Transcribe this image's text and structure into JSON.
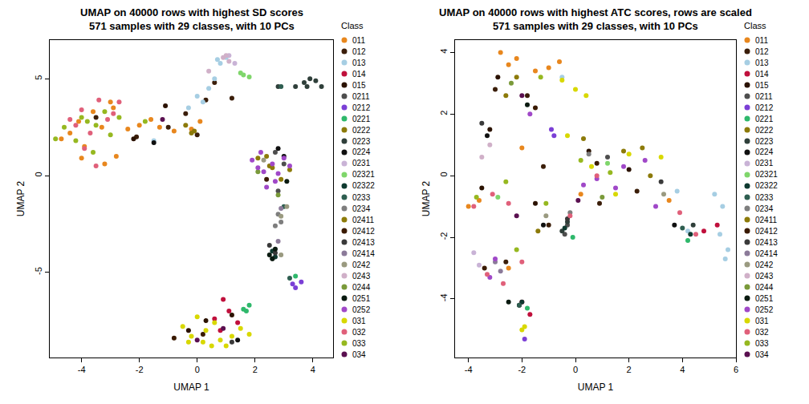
{
  "chart_data": [
    {
      "type": "scatter",
      "title": "UMAP on 40000 rows with highest SD scores",
      "subtitle": "571 samples with 29 classes, with 10 PCs",
      "x_label": "UMAP 1",
      "y_label": "UMAP 2",
      "legend_title": "Class",
      "xlim": [
        -5.1,
        4.7
      ],
      "ylim": [
        -9.4,
        7.0
      ],
      "xticks": [
        -4,
        -2,
        0,
        2,
        4
      ],
      "yticks": [
        -5,
        0,
        5
      ],
      "series": [
        {
          "name": "011",
          "color": "#E8871E",
          "x": [
            -4.7,
            -4.4,
            -4.1,
            -3.9,
            -3.6,
            -3.3,
            -3.0,
            -2.8,
            -2.4,
            -2.0,
            -1.6,
            -1.3,
            -0.8,
            -0.2,
            0.1,
            -3.2,
            -4.0,
            -2.9
          ],
          "y": [
            1.9,
            2.2,
            2.8,
            1.5,
            3.3,
            2.5,
            3.8,
            1.0,
            2.4,
            2.6,
            2.9,
            2.5,
            2.3,
            2.4,
            2.8,
            0.6,
            0.9,
            3.5
          ]
        },
        {
          "name": "012",
          "color": "#3B1E0A",
          "x": [
            -2.1,
            -1.0,
            -0.4,
            0.3,
            0.6,
            1.2,
            -3.5,
            0.0
          ],
          "y": [
            2.0,
            2.5,
            3.2,
            3.9,
            4.8,
            4.0,
            3.0,
            2.1
          ]
        },
        {
          "name": "013",
          "color": "#A6CEE3",
          "x": [
            -0.3,
            0.0,
            0.4,
            0.6,
            0.8,
            1.0,
            0.7,
            0.2,
            -1.5
          ],
          "y": [
            3.5,
            4.1,
            4.5,
            5.0,
            5.8,
            6.1,
            6.0,
            3.8,
            1.8
          ]
        },
        {
          "name": "014",
          "color": "#C0103C",
          "x": [
            0.9,
            0.6,
            1.1,
            1.4,
            0.8
          ],
          "y": [
            -6.4,
            -7.4,
            -7.0,
            -7.6,
            -8.0
          ]
        },
        {
          "name": "015",
          "color": "#2B1200",
          "x": [
            -2.2,
            -1.1,
            1.2,
            0.3,
            -0.3
          ],
          "y": [
            1.9,
            3.6,
            -7.2,
            -7.5,
            -8.0
          ]
        },
        {
          "name": "0211",
          "color": "#4E4E4E",
          "x": [
            3.0,
            2.7,
            2.8
          ],
          "y": [
            0.6,
            1.2,
            -0.8
          ]
        },
        {
          "name": "0212",
          "color": "#7B3FD6",
          "x": [
            3.3,
            3.4,
            3.6
          ],
          "y": [
            -5.6,
            -5.8,
            -5.5
          ]
        },
        {
          "name": "0221",
          "color": "#2EB86B",
          "x": [
            1.6,
            1.8,
            3.4,
            1.7
          ],
          "y": [
            -6.9,
            -6.7,
            -5.2,
            -7.0
          ]
        },
        {
          "name": "0222",
          "color": "#8C7A0A",
          "x": [
            -0.1,
            -0.4,
            2.5,
            -0.2
          ],
          "y": [
            2.3,
            2.6,
            0.5,
            2.2
          ]
        },
        {
          "name": "0223",
          "color": "#2F3F3A",
          "x": [
            3.4,
            3.7,
            3.9,
            4.1,
            4.3,
            3.8,
            2.8
          ],
          "y": [
            4.6,
            4.8,
            5.0,
            4.9,
            4.6,
            4.6,
            4.6
          ]
        },
        {
          "name": "0224",
          "color": "#101010",
          "x": [
            2.8,
            3.0,
            1.4,
            -1.5
          ],
          "y": [
            1.4,
            1.0,
            -8.5,
            1.7
          ]
        },
        {
          "name": "0231",
          "color": "#C9B3D6",
          "x": [
            1.1,
            1.3
          ],
          "y": [
            6.2,
            5.8
          ]
        },
        {
          "name": "02321",
          "color": "#7FD66B",
          "x": [
            1.5,
            1.8,
            1.6
          ],
          "y": [
            5.3,
            5.1,
            5.2
          ]
        },
        {
          "name": "02322",
          "color": "#0F3A30",
          "x": [
            2.6,
            2.7
          ],
          "y": [
            -3.9,
            -4.2
          ]
        },
        {
          "name": "0233",
          "color": "#2E5E50",
          "x": [
            2.9,
            3.0,
            3.2
          ],
          "y": [
            4.6,
            -1.6,
            -5.3
          ]
        },
        {
          "name": "0234",
          "color": "#7E7E7E",
          "x": [
            2.8,
            2.9,
            2.7
          ],
          "y": [
            -2.0,
            -2.4,
            -2.6
          ]
        },
        {
          "name": "02411",
          "color": "#8D7B0A",
          "x": [
            2.1,
            2.6,
            2.9,
            3.2,
            2.4
          ],
          "y": [
            0.9,
            0.4,
            -0.2,
            0.3,
            1.0
          ]
        },
        {
          "name": "02412",
          "color": "#3A1A00",
          "x": [
            2.4,
            0.2,
            -0.8
          ],
          "y": [
            -0.2,
            -8.2,
            -8.4
          ]
        },
        {
          "name": "02413",
          "color": "#3A3A3A",
          "x": [
            2.5,
            2.7,
            2.6,
            1.2
          ],
          "y": [
            -3.6,
            -4.0,
            -4.3,
            -8.6
          ]
        },
        {
          "name": "02414",
          "color": "#8B7A99",
          "x": [
            2.8,
            2.9
          ],
          "y": [
            -3.4,
            -1.7
          ]
        },
        {
          "name": "0242",
          "color": "#9A9A80",
          "x": [
            2.9,
            3.1,
            2.9,
            2.3
          ],
          "y": [
            -2.1,
            -1.6,
            -4.1,
            0.8
          ]
        },
        {
          "name": "0243",
          "color": "#D0B0C8",
          "x": [
            0.9,
            1.1,
            1.0,
            0.4
          ],
          "y": [
            6.1,
            5.9,
            6.2,
            5.4
          ]
        },
        {
          "name": "0244",
          "color": "#7A9A3A",
          "x": [
            2.1,
            2.8
          ],
          "y": [
            0.2,
            -1.0
          ]
        },
        {
          "name": "0251",
          "color": "#0A1A10",
          "x": [
            2.5,
            2.7,
            2.6,
            3.1
          ],
          "y": [
            -4.1,
            -3.8,
            -4.3,
            -0.3
          ]
        },
        {
          "name": "0252",
          "color": "#A048C8",
          "x": [
            1.9,
            2.1,
            2.3,
            2.6,
            2.8,
            3.0,
            3.2,
            2.4,
            2.7,
            2.2
          ],
          "y": [
            0.8,
            0.4,
            0.2,
            0.6,
            0.1,
            0.9,
            0.5,
            -0.6,
            -0.3,
            1.2
          ]
        },
        {
          "name": "031",
          "color": "#D8D800",
          "x": [
            -0.5,
            -0.2,
            0.2,
            0.5,
            0.8,
            1.2,
            1.5,
            1.8,
            0.0,
            0.6,
            1.0,
            -0.3,
            0.3
          ],
          "y": [
            -7.8,
            -8.3,
            -8.6,
            -8.8,
            -8.5,
            -8.3,
            -7.9,
            -8.2,
            -7.3,
            -7.6,
            -8.8,
            -8.6,
            -8.0
          ]
        },
        {
          "name": "032",
          "color": "#E0607A",
          "x": [
            -4.4,
            -4.0,
            -3.7,
            -3.4,
            -3.1,
            -2.7,
            -3.9,
            -3.5,
            -2.9,
            -4.2
          ],
          "y": [
            2.9,
            3.4,
            2.2,
            3.9,
            2.9,
            3.8,
            1.4,
            0.5,
            3.2,
            2.6
          ]
        },
        {
          "name": "033",
          "color": "#96B820",
          "x": [
            -4.9,
            -4.6,
            -4.2,
            -3.8,
            -3.5,
            -3.2,
            -3.0,
            -2.7,
            -3.6,
            -4.0,
            -1.8
          ],
          "y": [
            1.9,
            2.5,
            1.8,
            2.8,
            2.6,
            3.3,
            2.1,
            3.0,
            1.2,
            3.0,
            2.8
          ]
        },
        {
          "name": "034",
          "color": "#5A1050",
          "x": [
            0.0,
            -1.2,
            0.9
          ],
          "y": [
            -8.5,
            2.9,
            -7.9
          ]
        }
      ]
    },
    {
      "type": "scatter",
      "title": "UMAP on 40000 rows with highest ATC scores, rows are scaled",
      "subtitle": "571 samples with 29 classes, with 10 PCs",
      "x_label": "UMAP 1",
      "y_label": "UMAP 2",
      "legend_title": "Class",
      "xlim": [
        -4.5,
        6.0
      ],
      "ylim": [
        -5.9,
        4.4
      ],
      "xticks": [
        -4,
        -2,
        0,
        2,
        4,
        6
      ],
      "yticks": [
        -4,
        -2,
        0,
        2,
        4
      ],
      "series": [
        {
          "name": "011",
          "color": "#E8871E",
          "x": [
            -2.8,
            -2.5,
            -2.2,
            -1.5,
            -1.0,
            -0.6,
            -4.0,
            -3.6,
            -2.0,
            0.2,
            3.5,
            -2.5
          ],
          "y": [
            4.0,
            3.6,
            3.8,
            3.4,
            3.5,
            3.7,
            -1.0,
            -0.8,
            0.9,
            -0.6,
            -0.8,
            -3.0
          ]
        },
        {
          "name": "012",
          "color": "#3B1E0A",
          "x": [
            -3.0,
            -1.8,
            -1.2,
            0.9,
            -2.6,
            -1.0,
            2.3
          ],
          "y": [
            2.8,
            2.6,
            0.3,
            -0.9,
            -2.8,
            -1.6,
            -0.5
          ]
        },
        {
          "name": "013",
          "color": "#A6CEE3",
          "x": [
            5.2,
            5.5,
            5.7,
            5.6,
            5.4,
            3.8,
            4.2,
            -0.5
          ],
          "y": [
            -0.6,
            -1.0,
            -2.4,
            -2.7,
            -1.9,
            -0.5,
            -1.8,
            3.2
          ]
        },
        {
          "name": "014",
          "color": "#C0103C",
          "x": [
            -2.0,
            -1.7,
            4.8,
            5.3
          ],
          "y": [
            -4.1,
            -4.5,
            -1.8,
            -1.6
          ]
        },
        {
          "name": "015",
          "color": "#2B1200",
          "x": [
            -2.9,
            -3.2,
            -1.5,
            2.0,
            -3.5,
            0.5
          ],
          "y": [
            3.2,
            1.5,
            -0.9,
            0.2,
            -0.4,
            0.8
          ]
        },
        {
          "name": "0211",
          "color": "#4E4E4E",
          "x": [
            -0.3,
            -0.4,
            1.2
          ],
          "y": [
            -1.6,
            -1.9,
            0.6
          ]
        },
        {
          "name": "0212",
          "color": "#7B3FD6",
          "x": [
            -0.9,
            -0.8,
            -1.9
          ],
          "y": [
            1.5,
            1.3,
            -5.3
          ]
        },
        {
          "name": "0221",
          "color": "#2EB86B",
          "x": [
            -0.1,
            4.2,
            -1.8
          ],
          "y": [
            -2.0,
            -2.1,
            -4.3
          ]
        },
        {
          "name": "0222",
          "color": "#8C7A0A",
          "x": [
            -2.6,
            0.3,
            2.8,
            -1.4
          ],
          "y": [
            2.6,
            1.2,
            0.0,
            -1.8
          ]
        },
        {
          "name": "0223",
          "color": "#2F3F3A",
          "x": [
            -0.3,
            4.4,
            -0.5
          ],
          "y": [
            -1.5,
            -1.6,
            -1.8
          ]
        },
        {
          "name": "0224",
          "color": "#101010",
          "x": [
            -1.2,
            -2.1,
            3.7,
            -3.3
          ],
          "y": [
            -1.6,
            -4.2,
            -1.6,
            1.3
          ]
        },
        {
          "name": "0231",
          "color": "#C9B3D6",
          "x": [
            -3.8,
            -3.6
          ],
          "y": [
            -2.5,
            -2.9
          ]
        },
        {
          "name": "02321",
          "color": "#7FD66B",
          "x": [
            -2.9,
            1.2
          ],
          "y": [
            -0.7,
            0.4
          ]
        },
        {
          "name": "02322",
          "color": "#0F3A30",
          "x": [
            -0.4,
            -2.0,
            4.3
          ],
          "y": [
            -1.7,
            -4.1,
            -1.9
          ]
        },
        {
          "name": "0233",
          "color": "#2E5E50",
          "x": [
            -2.1,
            4.0
          ],
          "y": [
            -4.2,
            -1.7
          ]
        },
        {
          "name": "0234",
          "color": "#7E7E7E",
          "x": [
            -0.2,
            0.5
          ],
          "y": [
            -1.2,
            0.7
          ]
        },
        {
          "name": "02411",
          "color": "#8D7B0A",
          "x": [
            -2.2,
            1.8,
            2.5
          ],
          "y": [
            3.2,
            0.8,
            0.9
          ]
        },
        {
          "name": "02412",
          "color": "#3A1A00",
          "x": [
            -1.5,
            -3.4,
            0.8
          ],
          "y": [
            2.2,
            -3.0,
            0.4
          ]
        },
        {
          "name": "02413",
          "color": "#3A3A3A",
          "x": [
            -0.3,
            -3.5,
            3.2
          ],
          "y": [
            -1.4,
            1.7,
            -0.2
          ]
        },
        {
          "name": "02414",
          "color": "#8B7A99",
          "x": [
            -3.0,
            -2.8
          ],
          "y": [
            -2.8,
            -3.1
          ]
        },
        {
          "name": "0242",
          "color": "#9A9A80",
          "x": [
            -1.1,
            3.3
          ],
          "y": [
            -1.3,
            -0.6
          ]
        },
        {
          "name": "0243",
          "color": "#D0B0C8",
          "x": [
            -3.2,
            -3.5
          ],
          "y": [
            1.0,
            0.6
          ]
        },
        {
          "name": "0244",
          "color": "#7A9A3A",
          "x": [
            -2.4,
            1.0
          ],
          "y": [
            3.0,
            -0.7
          ]
        },
        {
          "name": "0251",
          "color": "#0A1A10",
          "x": [
            -2.5,
            -1.8
          ],
          "y": [
            -4.1,
            2.3
          ]
        },
        {
          "name": "0252",
          "color": "#A048C8",
          "x": [
            -3.0,
            -1.7,
            0.3,
            1.8,
            2.6,
            3.0,
            -3.2,
            0.8,
            1.5
          ],
          "y": [
            -2.7,
            2.0,
            -0.3,
            0.3,
            0.5,
            -1.0,
            -3.3,
            -0.1,
            -0.4
          ]
        },
        {
          "name": "031",
          "color": "#D8D800",
          "x": [
            0.0,
            -0.5,
            0.4,
            -0.3,
            1.5,
            2.0,
            0.6,
            -2.0,
            -1.9,
            3.2
          ],
          "y": [
            2.8,
            3.1,
            2.6,
            1.3,
            -0.6,
            0.7,
            0.3,
            -5.0,
            -4.9,
            0.6
          ]
        },
        {
          "name": "032",
          "color": "#E0607A",
          "x": [
            -3.8,
            -3.1,
            -2.5,
            -2.0,
            -0.2,
            0.8,
            3.9,
            4.5,
            -3.3,
            -2.7
          ],
          "y": [
            -1.0,
            -0.6,
            -0.9,
            -2.8,
            -1.3,
            0.0,
            -1.2,
            -1.9,
            -3.2,
            -3.5
          ]
        },
        {
          "name": "033",
          "color": "#96B820",
          "x": [
            -1.3,
            -2.6,
            -1.1,
            -3.7,
            0.2,
            1.3,
            -2.2
          ],
          "y": [
            3.2,
            -0.2,
            -0.9,
            -0.7,
            0.5,
            0.1,
            -2.4
          ]
        },
        {
          "name": "034",
          "color": "#5A1050",
          "x": [
            -2.2,
            -2.0,
            0.1
          ],
          "y": [
            -1.3,
            2.6,
            -0.8
          ]
        }
      ]
    }
  ]
}
